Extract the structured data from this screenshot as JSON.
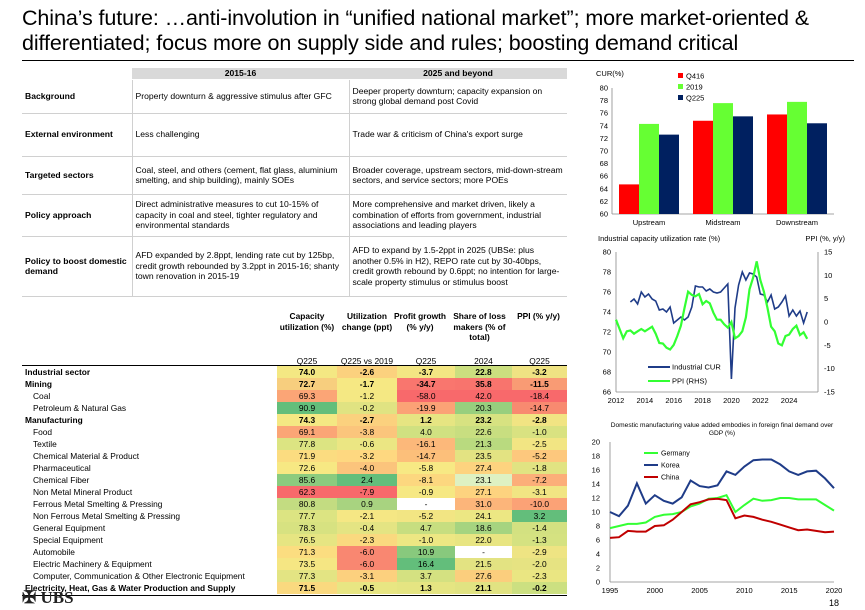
{
  "title": "China’s future: …anti-involution in “unified national market”; more market-oriented & differentiated; focus more on supply side and rules; boosting demand critical",
  "policy_table": {
    "headers": [
      "",
      "2015-16",
      "2025 and beyond"
    ],
    "rows": [
      {
        "label": "Background",
        "c1": "Property downturn & aggressive stimulus after GFC",
        "c2": "Deeper property downturn; capacity expansion on strong global demand post Covid"
      },
      {
        "label": "External environment",
        "c1": "Less challenging",
        "c2": "Trade war & criticism of China's export surge"
      },
      {
        "label": "Targeted sectors",
        "c1": "Coal, steel, and others (cement, flat glass, aluminium smelting, and ship building), mainly SOEs",
        "c2": "Broader coverage, upstream sectors, mid-down-stream sectors, and service sectors; more POEs"
      },
      {
        "label": "Policy approach",
        "c1": "Direct administrative measures to cut 10-15% of capacity in coal and steel, tighter regulatory and environmental standards",
        "c2": "More comprehensive and market driven, likely a combination of efforts from government, industrial associations and leading players"
      },
      {
        "label": "Policy to boost domestic demand",
        "c1": "AFD expanded by 2.8ppt, lending rate cut by 125bp, credit growth rebounded by 3.2ppt in 2015-16; shanty town renovation in 2015-19",
        "c2": "AFD to expand by 1.5-2ppt in 2025 (UBSe: plus another 0.5% in H2), REPO rate cut by 30-40bps, credit growth rebound by 0.6ppt; no intention for large-scale property stimulus or stimulus"
      }
    ],
    "row5_tail": "boost"
  },
  "heatmap": {
    "col_headers": [
      "Capacity utilization (%)",
      "Utilization change (ppt)",
      "Profit growth (% y/y)",
      "Share of loss makers (% of total)",
      "PPI (% y/y)"
    ],
    "col_sub": [
      "Q225",
      "Q225 vs 2019",
      "Q225",
      "2024",
      "Q225"
    ],
    "rows": [
      {
        "name": "Industrial sector",
        "bold": true,
        "indent": false,
        "v": [
          "74.0",
          "-2.6",
          "-3.7",
          "22.8",
          "-3.2"
        ]
      },
      {
        "name": "Mining",
        "bold": true,
        "indent": false,
        "v": [
          "72.7",
          "-1.7",
          "-34.7",
          "35.8",
          "-11.5"
        ]
      },
      {
        "name": "Coal",
        "bold": false,
        "indent": true,
        "v": [
          "69.3",
          "-1.2",
          "-58.0",
          "42.0",
          "-18.4"
        ]
      },
      {
        "name": "Petroleum & Natural Gas",
        "bold": false,
        "indent": true,
        "v": [
          "90.9",
          "-0.2",
          "-19.9",
          "20.3",
          "-14.7"
        ]
      },
      {
        "name": "Manufacturing",
        "bold": true,
        "indent": false,
        "v": [
          "74.3",
          "-2.7",
          "1.2",
          "23.2",
          "-2.8"
        ]
      },
      {
        "name": "Food",
        "bold": false,
        "indent": true,
        "v": [
          "69.1",
          "-3.8",
          "4.0",
          "22.6",
          "-1.0"
        ]
      },
      {
        "name": "Textile",
        "bold": false,
        "indent": true,
        "v": [
          "77.8",
          "-0.6",
          "-16.1",
          "21.3",
          "-2.5"
        ]
      },
      {
        "name": "Chemical Material & Product",
        "bold": false,
        "indent": true,
        "v": [
          "71.9",
          "-3.2",
          "-14.7",
          "23.5",
          "-5.2"
        ]
      },
      {
        "name": "Pharmaceutical",
        "bold": false,
        "indent": true,
        "v": [
          "72.6",
          "-4.0",
          "-5.8",
          "27.4",
          "-1.8"
        ]
      },
      {
        "name": "Chemical Fiber",
        "bold": false,
        "indent": true,
        "v": [
          "85.6",
          "2.4",
          "-8.1",
          "23.1",
          "-7.2"
        ]
      },
      {
        "name": "Non Metal Mineral Product",
        "bold": false,
        "indent": true,
        "v": [
          "62.3",
          "-7.9",
          "-0.9",
          "27.1",
          "-3.1"
        ]
      },
      {
        "name": "Ferrous Metal Smelting & Pressing",
        "bold": false,
        "indent": true,
        "v": [
          "80.8",
          "0.9",
          "-",
          "31.0",
          "-10.0"
        ]
      },
      {
        "name": "Non Ferrous Metal Smelting & Pressing",
        "bold": false,
        "indent": true,
        "v": [
          "77.7",
          "-2.1",
          "-5.2",
          "24.1",
          "3.2"
        ]
      },
      {
        "name": "General Equipment",
        "bold": false,
        "indent": true,
        "v": [
          "78.3",
          "-0.4",
          "4.7",
          "18.6",
          "-1.4"
        ]
      },
      {
        "name": "Special Equipment",
        "bold": false,
        "indent": true,
        "v": [
          "76.5",
          "-2.3",
          "-1.0",
          "22.0",
          "-1.3"
        ]
      },
      {
        "name": "Automobile",
        "bold": false,
        "indent": true,
        "v": [
          "71.3",
          "-6.0",
          "10.9",
          "-",
          "-2.9"
        ]
      },
      {
        "name": "Electric Machinery & Equipment",
        "bold": false,
        "indent": true,
        "v": [
          "73.5",
          "-6.0",
          "16.4",
          "21.5",
          "-2.0"
        ]
      },
      {
        "name": "Computer, Communication & Other Electronic Equipment",
        "bold": false,
        "indent": true,
        "v": [
          "77.3",
          "-3.1",
          "3.7",
          "27.6",
          "-2.3"
        ]
      },
      {
        "name": "Electricity, Heat, Gas & Water Production and Supply",
        "bold": true,
        "indent": false,
        "v": [
          "71.5",
          "-0.5",
          "1.3",
          "21.1",
          "-0.2"
        ]
      }
    ],
    "colors": [
      [
        "#f4e883",
        "#fbd17e",
        "#f3e683",
        "#cbdf7f",
        "#efe383"
      ],
      [
        "#f7ce7e",
        "#f6e883",
        "#f9766e",
        "#f8746d",
        "#f99b74"
      ],
      [
        "#fba576",
        "#f4e883",
        "#f8696b",
        "#f8696b",
        "#f8696b"
      ],
      [
        "#63be7b",
        "#e0e382",
        "#fba276",
        "#97cf7e",
        "#f88a70"
      ],
      [
        "#f4e883",
        "#fbd17e",
        "#e6e582",
        "#d7e281",
        "#f1e483"
      ],
      [
        "#fba576",
        "#fbc57c",
        "#d0e181",
        "#c8de80",
        "#d9e281"
      ],
      [
        "#dce482",
        "#ebe683",
        "#fcb87a",
        "#b9da7f",
        "#f2e583"
      ],
      [
        "#fbdc80",
        "#fed880",
        "#fcbf7a",
        "#e3e382",
        "#fdc87d"
      ],
      [
        "#f7e883",
        "#fbc47c",
        "#f7e984",
        "#fdd37f",
        "#e1e382"
      ],
      [
        "#8bcb7e",
        "#63be7b",
        "#fcd77f",
        "#def1c2",
        "#fcae79"
      ],
      [
        "#f8696b",
        "#f8696b",
        "#f6e883",
        "#fdd37f",
        "#f1e583"
      ],
      [
        "#c3dc81",
        "#a8d380",
        "#ffffff",
        "#fcb57a",
        "#fba276"
      ],
      [
        "#dce482",
        "#f5e784",
        "#f2e583",
        "#ece783",
        "#63be7b"
      ],
      [
        "#d7e281",
        "#e4e483",
        "#c7de80",
        "#a6d480",
        "#d3e181"
      ],
      [
        "#e6e582",
        "#fad97f",
        "#ede783",
        "#e8e582",
        "#d5e281"
      ],
      [
        "#fbdd80",
        "#f98771",
        "#88c97d",
        "#ffffff",
        "#eee483"
      ],
      [
        "#f5e683",
        "#f98771",
        "#63be7b",
        "#e3e382",
        "#e6e382"
      ],
      [
        "#e3e483",
        "#fcd07e",
        "#d4e181",
        "#fbce7d",
        "#eae682"
      ],
      [
        "#fad97f",
        "#e8e683",
        "#e5e582",
        "#e1e382",
        "#cce081"
      ]
    ]
  },
  "chart_data": [
    {
      "type": "bar",
      "title": "",
      "ylabel": "CUR(%)",
      "ylim": [
        60,
        80
      ],
      "yticks": [
        "60",
        "62",
        "64",
        "66",
        "68",
        "70",
        "72",
        "74",
        "76",
        "78",
        "80"
      ],
      "categories": [
        "Upstream",
        "Midstream",
        "Downstream"
      ],
      "series": [
        {
          "name": "Q416",
          "color": "#ff0000",
          "values": [
            64.7,
            74.8,
            75.8
          ]
        },
        {
          "name": "2019",
          "color": "#66ff33",
          "values": [
            74.3,
            77.6,
            77.8
          ]
        },
        {
          "name": "Q225",
          "color": "#002060",
          "values": [
            72.6,
            75.5,
            74.4
          ]
        }
      ]
    },
    {
      "type": "line",
      "title_left": "Industrial capacity utilization rate (%)",
      "title_right": "PPI (%, y/y)",
      "ylim": [
        66,
        80
      ],
      "y2lim": [
        -15,
        15
      ],
      "xticks": [
        "2012",
        "2014",
        "2016",
        "2018",
        "2020",
        "2022",
        "2024"
      ],
      "yticks": [
        "66",
        "68",
        "70",
        "72",
        "74",
        "76",
        "78",
        "80"
      ],
      "y2ticks": [
        "15",
        "10",
        "5",
        "0",
        "-5",
        "-10",
        "-15"
      ],
      "series": [
        {
          "name": "Industrial CUR",
          "color": "#1f3c88",
          "axis": "left",
          "x": [
            2013.0,
            2013.25,
            2013.5,
            2013.75,
            2014.0,
            2014.25,
            2014.5,
            2014.75,
            2015.0,
            2015.25,
            2015.5,
            2015.75,
            2016.0,
            2016.25,
            2016.5,
            2016.75,
            2017.0,
            2017.25,
            2017.5,
            2017.75,
            2018.0,
            2018.25,
            2018.5,
            2018.75,
            2019.0,
            2019.25,
            2019.5,
            2019.75,
            2020.0,
            2020.25,
            2020.5,
            2020.75,
            2021.0,
            2021.25,
            2021.5,
            2021.75,
            2022.0,
            2022.25,
            2022.5,
            2022.75,
            2023.0,
            2023.25,
            2023.5,
            2023.75,
            2024.0,
            2024.25,
            2024.5,
            2024.75,
            2025.0,
            2025.25
          ],
          "y": [
            75.0,
            75.3,
            74.8,
            76.0,
            75.5,
            75.8,
            75.3,
            75.1,
            74.2,
            74.3,
            74.0,
            74.5,
            72.9,
            73.2,
            73.5,
            73.2,
            73.5,
            74.5,
            76.6,
            76.5,
            76.5,
            76.1,
            76.3,
            76.0,
            75.9,
            76.0,
            76.4,
            76.8,
            67.3,
            74.4,
            76.7,
            78.0,
            77.2,
            77.9,
            77.8,
            77.5,
            75.8,
            75.7,
            75.0,
            75.7,
            74.3,
            74.5,
            75.0,
            75.6,
            73.6,
            74.2,
            73.6,
            74.1,
            72.9,
            74.0
          ]
        },
        {
          "name": "PPI (RHS)",
          "color": "#33ff33",
          "axis": "right",
          "x": [
            2012.0,
            2012.25,
            2012.5,
            2012.75,
            2013.0,
            2013.25,
            2013.5,
            2013.75,
            2014.0,
            2014.25,
            2014.5,
            2014.75,
            2015.0,
            2015.25,
            2015.5,
            2015.75,
            2016.0,
            2016.25,
            2016.5,
            2016.75,
            2017.0,
            2017.25,
            2017.5,
            2017.75,
            2018.0,
            2018.25,
            2018.5,
            2018.75,
            2019.0,
            2019.25,
            2019.5,
            2019.75,
            2020.0,
            2020.25,
            2020.5,
            2020.75,
            2021.0,
            2021.25,
            2021.5,
            2021.75,
            2022.0,
            2022.25,
            2022.5,
            2022.75,
            2023.0,
            2023.25,
            2023.5,
            2023.75,
            2024.0,
            2024.25,
            2024.5,
            2024.75,
            2025.0,
            2025.25
          ],
          "y": [
            0.5,
            -1.5,
            -3.5,
            -2.0,
            -1.8,
            -2.5,
            -2.0,
            -1.5,
            -2.0,
            -1.5,
            -1.0,
            -2.5,
            -4.5,
            -4.6,
            -5.5,
            -5.9,
            -4.9,
            -3.0,
            -0.8,
            3.0,
            6.5,
            5.8,
            5.5,
            6.0,
            3.8,
            4.5,
            4.0,
            2.0,
            0.5,
            0.5,
            -0.5,
            -1.2,
            0.0,
            -3.5,
            -3.0,
            -2.0,
            1.0,
            7.0,
            9.5,
            13.0,
            9.0,
            6.5,
            3.0,
            -1.0,
            -2.0,
            -4.6,
            -5.0,
            -3.0,
            -2.7,
            -1.5,
            -0.8,
            -2.8,
            -2.2,
            -3.6
          ]
        }
      ]
    },
    {
      "type": "line",
      "title": "Domestic manufacturing value added embodies in foreign final demand over GDP (%)",
      "xlim": [
        1995,
        2020
      ],
      "ylim": [
        0,
        20
      ],
      "xticks": [
        "1995",
        "2000",
        "2005",
        "2010",
        "2015",
        "2020"
      ],
      "yticks": [
        "0",
        "2",
        "4",
        "6",
        "8",
        "10",
        "12",
        "14",
        "16",
        "18",
        "20"
      ],
      "series": [
        {
          "name": "Germany",
          "color": "#33ff33",
          "x": [
            1995,
            1996,
            1997,
            1998,
            1999,
            2000,
            2001,
            2002,
            2003,
            2004,
            2005,
            2006,
            2007,
            2008,
            2009,
            2010,
            2011,
            2012,
            2013,
            2014,
            2015,
            2016,
            2017,
            2018,
            2019,
            2020
          ],
          "y": [
            7.7,
            8.0,
            8.3,
            8.3,
            8.5,
            9.3,
            9.6,
            9.7,
            10.0,
            10.8,
            11.2,
            11.9,
            12.0,
            12.4,
            10.0,
            11.0,
            11.9,
            11.6,
            11.7,
            12.0,
            12.0,
            11.8,
            11.8,
            11.8,
            11.0,
            10.2
          ]
        },
        {
          "name": "Korea",
          "color": "#1f3c88",
          "x": [
            1995,
            1996,
            1997,
            1998,
            1999,
            2000,
            2001,
            2002,
            2003,
            2004,
            2005,
            2006,
            2007,
            2008,
            2009,
            2010,
            2011,
            2012,
            2013,
            2014,
            2015,
            2016,
            2017,
            2018,
            2019,
            2020
          ],
          "y": [
            10.0,
            9.4,
            10.9,
            14.1,
            11.2,
            12.4,
            11.6,
            11.2,
            12.1,
            14.5,
            13.7,
            13.5,
            13.8,
            15.8,
            15.3,
            16.5,
            17.4,
            17.5,
            17.5,
            16.8,
            15.8,
            15.3,
            15.8,
            15.9,
            14.8,
            13.4
          ]
        },
        {
          "name": "China",
          "color": "#c00000",
          "x": [
            1995,
            1996,
            1997,
            1998,
            1999,
            2000,
            2001,
            2002,
            2003,
            2004,
            2005,
            2006,
            2007,
            2008,
            2009,
            2010,
            2011,
            2012,
            2013,
            2014,
            2015,
            2016,
            2017,
            2018,
            2019,
            2020
          ],
          "y": [
            6.3,
            6.4,
            7.3,
            7.2,
            7.2,
            8.0,
            8.1,
            8.9,
            10.0,
            11.1,
            11.4,
            11.8,
            11.9,
            11.7,
            9.1,
            9.5,
            9.3,
            8.9,
            8.6,
            8.2,
            7.8,
            7.4,
            7.5,
            7.3,
            7.1,
            7.2
          ]
        }
      ]
    }
  ],
  "footer": {
    "logo": "UBS",
    "page": "18"
  }
}
